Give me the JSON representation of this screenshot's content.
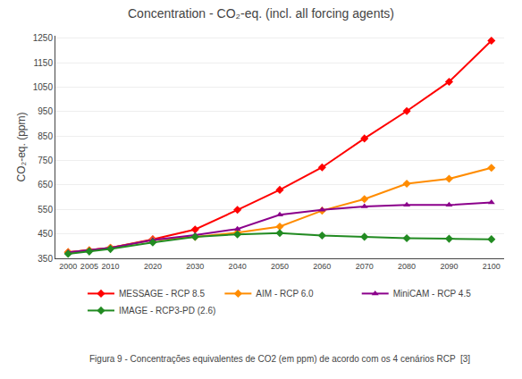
{
  "chart_data": {
    "type": "line",
    "title": "Concentration - CO₂-eq. (incl. all forcing agents)",
    "ylabel": "CO₂-eq. (ppm)",
    "caption": "Figura 9 - Concentrações equivalentes de CO2 (em ppm) de acordo com os 4 cenários RCP  [3]",
    "x": [
      2000,
      2005,
      2010,
      2020,
      2030,
      2040,
      2050,
      2060,
      2070,
      2080,
      2090,
      2100
    ],
    "series": [
      {
        "name": "MESSAGE - RCP 8.5",
        "color": "#ff0000",
        "marker": "diamond",
        "values": [
          375,
          383,
          393,
          428,
          468,
          548,
          630,
          722,
          840,
          952,
          1072,
          1240
        ]
      },
      {
        "name": "AIM - RCP 6.0",
        "color": "#ff8c00",
        "marker": "diamond",
        "values": [
          375,
          383,
          393,
          425,
          438,
          455,
          480,
          545,
          592,
          655,
          675,
          720
        ]
      },
      {
        "name": "MiniCAM - RCP 4.5",
        "color": "#8b008b",
        "marker": "triangle",
        "values": [
          375,
          383,
          393,
          425,
          445,
          470,
          528,
          548,
          562,
          568,
          568,
          578
        ]
      },
      {
        "name": "IMAGE - RCP3-PD (2.6)",
        "color": "#228b22",
        "marker": "diamond",
        "values": [
          368,
          378,
          388,
          415,
          438,
          448,
          453,
          443,
          438,
          432,
          430,
          428
        ]
      }
    ],
    "xlim": [
      1997,
      2103
    ],
    "xticks": [
      2000,
      2005,
      2010,
      2020,
      2030,
      2040,
      2050,
      2060,
      2070,
      2080,
      2090,
      2100
    ],
    "ylim": [
      350,
      1260
    ],
    "yticks": [
      350,
      450,
      550,
      650,
      750,
      850,
      950,
      1050,
      1150,
      1250
    ],
    "grid": "y",
    "legend": "bottom"
  }
}
